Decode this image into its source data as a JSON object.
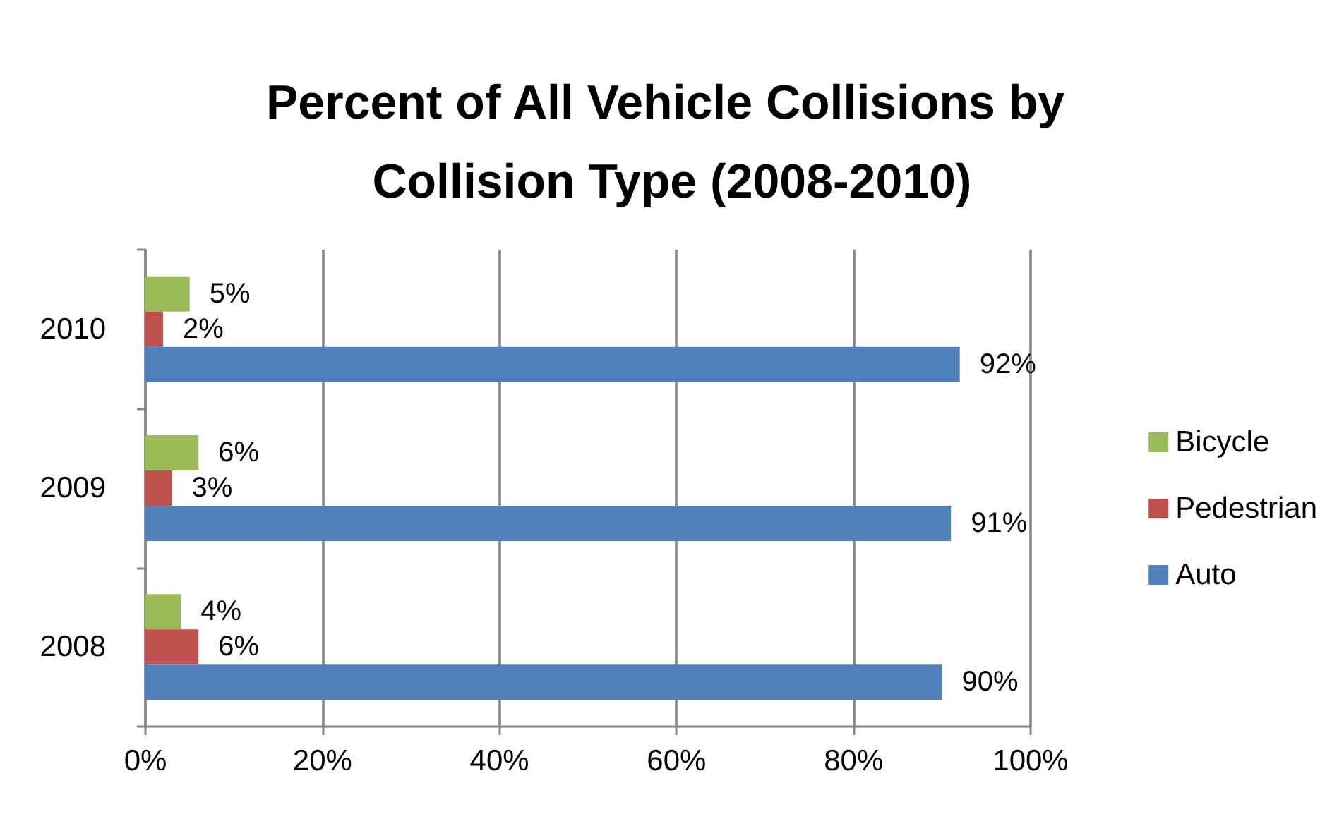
{
  "chart_data": {
    "type": "bar",
    "title": "Percent of All Vehicle Collisions by Collision Type (2008-2010)",
    "orientation": "horizontal",
    "categories": [
      "2010",
      "2009",
      "2008"
    ],
    "series": [
      {
        "name": "Bicycle",
        "color": "#9bbb59",
        "values": [
          5,
          6,
          4
        ],
        "value_labels": [
          "5%",
          "6%",
          "4%"
        ]
      },
      {
        "name": "Pedestrian",
        "color": "#c0504d",
        "values": [
          2,
          3,
          6
        ],
        "value_labels": [
          "2%",
          "3%",
          "6%"
        ]
      },
      {
        "name": "Auto",
        "color": "#4f81bd",
        "values": [
          92,
          91,
          90
        ],
        "value_labels": [
          "92%",
          "91%",
          "90%"
        ]
      }
    ],
    "xlim": [
      0,
      100
    ],
    "xticks": [
      {
        "value": 0,
        "label": "0%"
      },
      {
        "value": 20,
        "label": "20%"
      },
      {
        "value": 40,
        "label": "40%"
      },
      {
        "value": 60,
        "label": "60%"
      },
      {
        "value": 80,
        "label": "80%"
      },
      {
        "value": 100,
        "label": "100%"
      }
    ],
    "grid": "x",
    "legend": "right"
  }
}
